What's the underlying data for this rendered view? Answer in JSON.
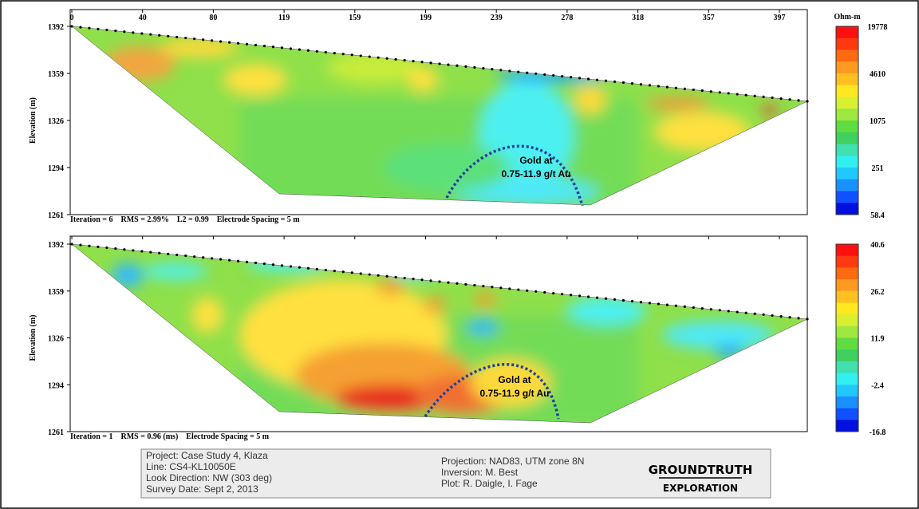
{
  "panels": [
    {
      "x_axis_labels": [
        "0",
        "40",
        "80",
        "119",
        "159",
        "199",
        "239",
        "278",
        "318",
        "357",
        "397"
      ],
      "y_axis_title": "Elevation (m)",
      "y_axis_labels": [
        "1392",
        "1359",
        "1326",
        "1294",
        "1261"
      ],
      "colorbar_title": "Ohm-m",
      "colorbar_labels": [
        "19778",
        "4610",
        "1075",
        "251",
        "58.4"
      ],
      "annotation": [
        "Gold at",
        "0.75-11.9 g/t  Au"
      ],
      "caption": "Iteration = 6    RMS = 2.99%    L2 = 0.99    Electrode Spacing = 5 m"
    },
    {
      "y_axis_title": "Elevation (m)",
      "y_axis_labels": [
        "1392",
        "1359",
        "1326",
        "1294",
        "1261"
      ],
      "colorbar_labels": [
        "40.6",
        "26.2",
        "11.9",
        "-2.4",
        "-16.8"
      ],
      "annotation": [
        "Gold at",
        "0.75-11.9 g/t  Au"
      ],
      "caption": "Iteration = 1    RMS = 0.96 (ms)    Electrode Spacing = 5 m"
    }
  ],
  "info": {
    "left": [
      "Project: Case Study 4, Klaza",
      "Line: CS4-KL10050E",
      "Look Direction:  NW (303 deg)",
      "Survey Date: Sept 2, 2013"
    ],
    "right": [
      "Projection: NAD83, UTM zone 8N",
      "Inversion: M. Best",
      "Plot: R. Daigle, I. Fage"
    ]
  },
  "logo": {
    "line1": "GROUNDTRUTH",
    "line2": "EXPLORATION"
  }
}
